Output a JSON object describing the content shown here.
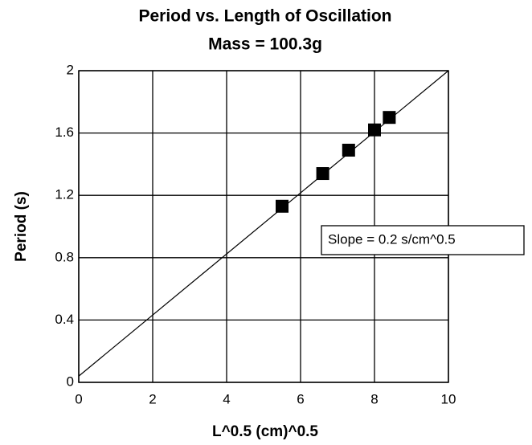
{
  "chart_data": {
    "type": "scatter",
    "title": "Period vs. Length of Oscillation",
    "subtitle": "Mass = 100.3g",
    "x_label": "L^0.5 (cm)^0.5",
    "y_label": "Period (s)",
    "x": [
      5.5,
      6.6,
      7.3,
      8.0,
      8.4
    ],
    "values": [
      1.13,
      1.34,
      1.49,
      1.62,
      1.7
    ],
    "color": "#000000",
    "fit": {
      "x": [
        0,
        10
      ],
      "values": [
        0.04,
        2.0
      ]
    },
    "annotation": "Slope = 0.2 s/cm^0.5",
    "xlim": [
      0,
      10
    ],
    "xticks": [
      0,
      2,
      4,
      6,
      8,
      10
    ],
    "ylim": [
      0,
      2
    ],
    "yticks": [
      0,
      0.4,
      0.8,
      1.2,
      1.6,
      2
    ],
    "grid": true
  }
}
